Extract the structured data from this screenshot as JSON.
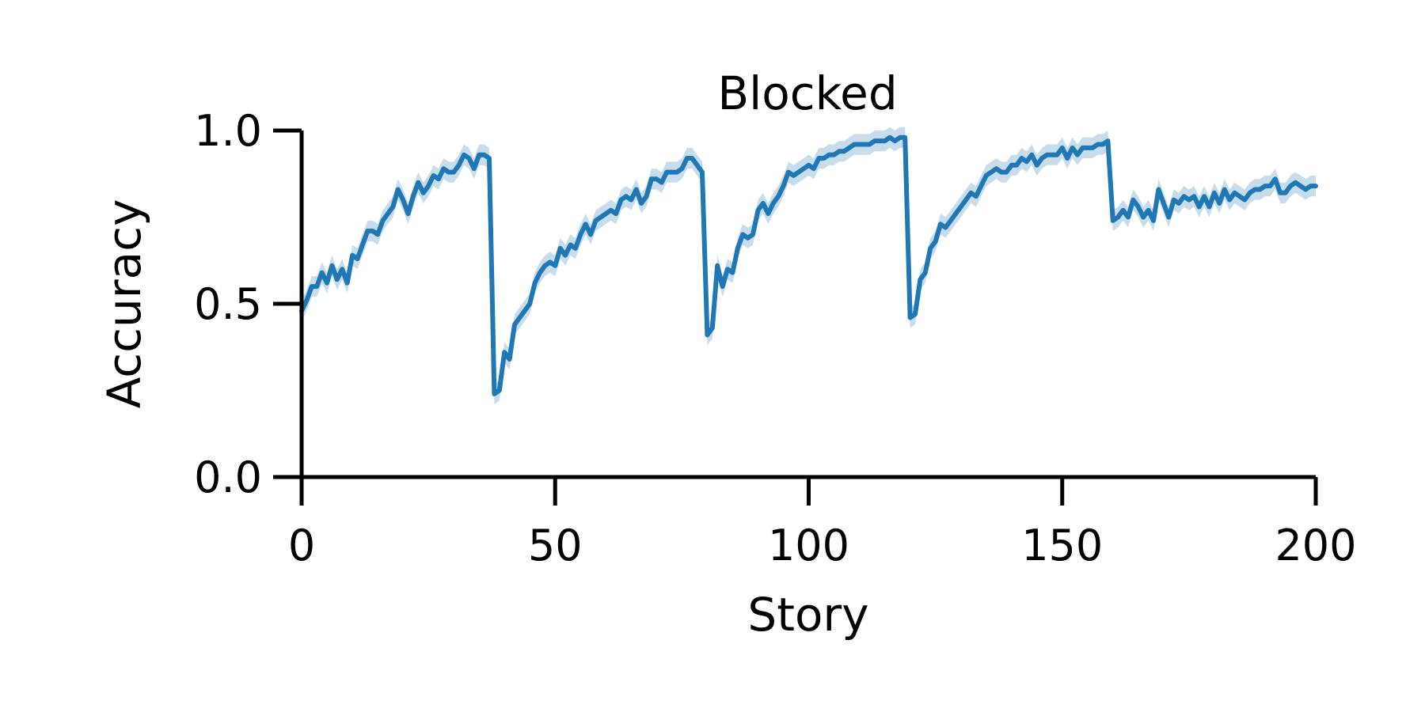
{
  "chart_data": {
    "type": "line",
    "title": "Blocked",
    "xlabel": "Story",
    "ylabel": "Accuracy",
    "xlim": [
      0,
      200
    ],
    "ylim": [
      0,
      1
    ],
    "x_ticks": [
      "0",
      "50",
      "100",
      "150",
      "200"
    ],
    "y_ticks": [
      "0.0",
      "0.5",
      "1.0"
    ],
    "grid": false,
    "legend": "none",
    "series": [
      {
        "color": "#1f77b4",
        "band_color": "#1f77b4",
        "band_halfwidth": 0.03,
        "x": [
          0,
          1,
          2,
          3,
          4,
          5,
          6,
          7,
          8,
          9,
          10,
          11,
          12,
          13,
          14,
          15,
          16,
          17,
          18,
          19,
          20,
          21,
          22,
          23,
          24,
          25,
          26,
          27,
          28,
          29,
          30,
          31,
          32,
          33,
          34,
          35,
          36,
          37,
          38,
          39,
          40,
          41,
          42,
          43,
          44,
          45,
          46,
          47,
          48,
          49,
          50,
          51,
          52,
          53,
          54,
          55,
          56,
          57,
          58,
          59,
          60,
          61,
          62,
          63,
          64,
          65,
          66,
          67,
          68,
          69,
          70,
          71,
          72,
          73,
          74,
          75,
          76,
          77,
          78,
          79,
          80,
          81,
          82,
          83,
          84,
          85,
          86,
          87,
          88,
          89,
          90,
          91,
          92,
          93,
          94,
          95,
          96,
          97,
          98,
          99,
          100,
          101,
          102,
          103,
          104,
          105,
          106,
          107,
          108,
          109,
          110,
          111,
          112,
          113,
          114,
          115,
          116,
          117,
          118,
          119,
          120,
          121,
          122,
          123,
          124,
          125,
          126,
          127,
          128,
          129,
          130,
          131,
          132,
          133,
          134,
          135,
          136,
          137,
          138,
          139,
          140,
          141,
          142,
          143,
          144,
          145,
          146,
          147,
          148,
          149,
          150,
          151,
          152,
          153,
          154,
          155,
          156,
          157,
          158,
          159,
          160,
          161,
          162,
          163,
          164,
          165,
          166,
          167,
          168,
          169,
          170,
          171,
          172,
          173,
          174,
          175,
          176,
          177,
          178,
          179,
          180,
          181,
          182,
          183,
          184,
          185,
          186,
          187,
          188,
          189,
          190,
          191,
          192,
          193,
          194,
          195,
          196,
          197,
          198,
          199,
          200
        ],
        "y": [
          0.48,
          0.51,
          0.55,
          0.55,
          0.59,
          0.56,
          0.61,
          0.57,
          0.6,
          0.56,
          0.64,
          0.63,
          0.67,
          0.71,
          0.71,
          0.7,
          0.74,
          0.76,
          0.78,
          0.83,
          0.8,
          0.76,
          0.81,
          0.85,
          0.82,
          0.84,
          0.87,
          0.86,
          0.89,
          0.88,
          0.88,
          0.9,
          0.93,
          0.92,
          0.89,
          0.93,
          0.93,
          0.92,
          0.24,
          0.25,
          0.36,
          0.34,
          0.44,
          0.46,
          0.48,
          0.5,
          0.56,
          0.59,
          0.61,
          0.62,
          0.61,
          0.66,
          0.64,
          0.67,
          0.66,
          0.7,
          0.73,
          0.7,
          0.74,
          0.75,
          0.76,
          0.77,
          0.76,
          0.8,
          0.81,
          0.8,
          0.83,
          0.79,
          0.81,
          0.86,
          0.86,
          0.85,
          0.88,
          0.88,
          0.88,
          0.89,
          0.92,
          0.92,
          0.9,
          0.88,
          0.41,
          0.43,
          0.61,
          0.55,
          0.6,
          0.59,
          0.66,
          0.7,
          0.69,
          0.7,
          0.77,
          0.79,
          0.76,
          0.79,
          0.81,
          0.84,
          0.88,
          0.87,
          0.88,
          0.89,
          0.9,
          0.89,
          0.92,
          0.92,
          0.93,
          0.93,
          0.94,
          0.94,
          0.95,
          0.96,
          0.96,
          0.96,
          0.96,
          0.97,
          0.97,
          0.97,
          0.98,
          0.97,
          0.98,
          0.98,
          0.46,
          0.47,
          0.57,
          0.59,
          0.66,
          0.68,
          0.73,
          0.72,
          0.74,
          0.76,
          0.78,
          0.8,
          0.82,
          0.81,
          0.84,
          0.87,
          0.88,
          0.89,
          0.88,
          0.88,
          0.9,
          0.9,
          0.92,
          0.91,
          0.93,
          0.9,
          0.92,
          0.93,
          0.93,
          0.93,
          0.95,
          0.92,
          0.95,
          0.93,
          0.95,
          0.95,
          0.95,
          0.96,
          0.96,
          0.97,
          0.74,
          0.75,
          0.77,
          0.75,
          0.8,
          0.78,
          0.75,
          0.77,
          0.74,
          0.83,
          0.79,
          0.75,
          0.8,
          0.79,
          0.81,
          0.8,
          0.81,
          0.78,
          0.81,
          0.78,
          0.82,
          0.79,
          0.83,
          0.8,
          0.82,
          0.81,
          0.8,
          0.82,
          0.83,
          0.83,
          0.84,
          0.84,
          0.86,
          0.82,
          0.82,
          0.84,
          0.85,
          0.84,
          0.83,
          0.84,
          0.84
        ]
      }
    ]
  }
}
